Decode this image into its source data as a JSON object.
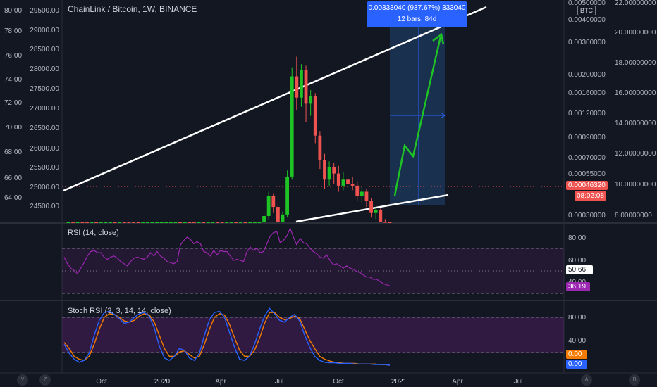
{
  "header": {
    "title": "ChainLink / Bitcoin, 1W, BINANCE"
  },
  "measure_box": {
    "line1": "0.00333040 (937.67%) 333040",
    "line2": "12 bars, 84d"
  },
  "price_badges": {
    "current": "0.00046320",
    "countdown": "08:02:08",
    "currency": "BTC"
  },
  "rsi_panel": {
    "label": "RSI (14, close)",
    "value_white": "50.66",
    "value_purple": "36.19"
  },
  "stoch_panel": {
    "label": "Stoch RSI (3, 3, 14, 14, close)",
    "value_orange": "0.00",
    "value_blue": "0.00"
  },
  "corner_buttons": {
    "bottom_left_1": "Y",
    "bottom_left_2": "Z",
    "bottom_right_1": "A",
    "bottom_right_2": "B"
  },
  "colors": {
    "up": "#26a69a",
    "green": "#1ec424",
    "down": "#ef5350",
    "purple": "#9c27b0",
    "blue": "#2962ff",
    "orange": "#f57c00",
    "bg": "#131722"
  },
  "chart_data": {
    "type": "candlestick",
    "left_axis_outer_ticks": [
      "80.00",
      "78.00",
      "76.00",
      "74.00",
      "72.00",
      "70.00",
      "68.00",
      "66.00",
      "64.00"
    ],
    "left_axis_inner_ticks": [
      "29500.00",
      "29000.00",
      "28500.00",
      "28000.00",
      "27500.00",
      "27000.00",
      "26500.00",
      "26000.00",
      "25500.00",
      "25000.00",
      "24500.00"
    ],
    "right_axis_inner_ticks": [
      "0.00500000",
      "0.00400000",
      "0.00300000",
      "0.00200000",
      "0.00160000",
      "0.00120000",
      "0.00090000",
      "0.00070000",
      "0.00055000",
      "0.00030000"
    ],
    "right_axis_outer_ticks": [
      "22.00000000",
      "20.00000000",
      "18.00000000",
      "16.00000000",
      "14.00000000",
      "12.00000000",
      "10.00000000",
      "8.00000000"
    ],
    "x_ticks": [
      "Oct",
      "2020",
      "Apr",
      "Jul",
      "Oct",
      "2021",
      "Apr",
      "Jul"
    ],
    "rsi_ticks": [
      "80.00",
      "60.00",
      "40.00"
    ],
    "stoch_ticks": [
      "80.00",
      "40.00"
    ],
    "candles": [
      {
        "o": 2.6,
        "c": 2.9,
        "h": 3.2,
        "l": 2.4
      },
      {
        "o": 2.9,
        "c": 2.7,
        "h": 3.0,
        "l": 2.5
      },
      {
        "o": 2.7,
        "c": 3.1,
        "h": 3.4,
        "l": 2.6
      },
      {
        "o": 3.1,
        "c": 2.8,
        "h": 3.5,
        "l": 2.7
      },
      {
        "o": 2.8,
        "c": 2.5,
        "h": 2.9,
        "l": 2.3
      },
      {
        "o": 2.5,
        "c": 2.7,
        "h": 2.9,
        "l": 2.4
      },
      {
        "o": 2.7,
        "c": 2.6,
        "h": 2.8,
        "l": 2.5
      },
      {
        "o": 2.6,
        "c": 2.8,
        "h": 2.9,
        "l": 2.5
      },
      {
        "o": 2.8,
        "c": 3.0,
        "h": 3.2,
        "l": 2.7
      },
      {
        "o": 3.0,
        "c": 3.3,
        "h": 3.5,
        "l": 2.9
      },
      {
        "o": 3.3,
        "c": 3.1,
        "h": 3.4,
        "l": 2.9
      },
      {
        "o": 3.1,
        "c": 3.2,
        "h": 3.3,
        "l": 3.0
      },
      {
        "o": 3.2,
        "c": 3.1,
        "h": 3.3,
        "l": 3.0
      },
      {
        "o": 3.1,
        "c": 2.8,
        "h": 3.2,
        "l": 2.7
      },
      {
        "o": 2.8,
        "c": 2.7,
        "h": 2.9,
        "l": 2.6
      },
      {
        "o": 2.7,
        "c": 2.6,
        "h": 2.8,
        "l": 2.5
      },
      {
        "o": 2.6,
        "c": 2.7,
        "h": 2.8,
        "l": 2.5
      },
      {
        "o": 2.7,
        "c": 2.8,
        "h": 2.9,
        "l": 2.6
      },
      {
        "o": 2.8,
        "c": 3.0,
        "h": 3.1,
        "l": 2.7
      },
      {
        "o": 3.0,
        "c": 3.3,
        "h": 3.4,
        "l": 2.9
      },
      {
        "o": 3.3,
        "c": 3.6,
        "h": 3.8,
        "l": 3.2
      },
      {
        "o": 3.6,
        "c": 4.4,
        "h": 4.6,
        "l": 3.5
      },
      {
        "o": 4.4,
        "c": 5.3,
        "h": 5.5,
        "l": 4.3
      },
      {
        "o": 5.3,
        "c": 5.8,
        "h": 6.2,
        "l": 5.1
      },
      {
        "o": 5.8,
        "c": 5.3,
        "h": 6.0,
        "l": 5.1
      },
      {
        "o": 5.3,
        "c": 5.9,
        "h": 6.6,
        "l": 5.2
      },
      {
        "o": 5.9,
        "c": 5.1,
        "h": 6.1,
        "l": 4.7
      },
      {
        "o": 5.1,
        "c": 4.7,
        "h": 5.3,
        "l": 4.5
      },
      {
        "o": 4.7,
        "c": 5.1,
        "h": 5.3,
        "l": 4.6
      },
      {
        "o": 5.1,
        "c": 4.8,
        "h": 5.2,
        "l": 4.6
      },
      {
        "o": 4.8,
        "c": 5.5,
        "h": 5.8,
        "l": 4.7
      },
      {
        "o": 5.5,
        "c": 5.7,
        "h": 5.8,
        "l": 5.3
      },
      {
        "o": 5.7,
        "c": 5.2,
        "h": 5.8,
        "l": 5.0
      },
      {
        "o": 5.2,
        "c": 4.8,
        "h": 5.3,
        "l": 4.6
      },
      {
        "o": 4.8,
        "c": 4.9,
        "h": 5.1,
        "l": 4.7
      },
      {
        "o": 4.9,
        "c": 5.1,
        "h": 5.2,
        "l": 4.8
      },
      {
        "o": 5.1,
        "c": 5.0,
        "h": 5.2,
        "l": 4.9
      },
      {
        "o": 5.0,
        "c": 5.2,
        "h": 5.3,
        "l": 4.9
      },
      {
        "o": 5.2,
        "c": 4.9,
        "h": 5.3,
        "l": 4.8
      },
      {
        "o": 4.9,
        "c": 5.3,
        "h": 5.5,
        "l": 4.8
      },
      {
        "o": 5.3,
        "c": 5.8,
        "h": 6.0,
        "l": 5.2
      },
      {
        "o": 5.8,
        "c": 6.0,
        "h": 6.2,
        "l": 5.6
      },
      {
        "o": 6.0,
        "c": 8.0,
        "h": 8.3,
        "l": 5.9
      },
      {
        "o": 8.0,
        "c": 9.3,
        "h": 9.6,
        "l": 7.8
      },
      {
        "o": 9.3,
        "c": 8.6,
        "h": 9.5,
        "l": 8.2
      },
      {
        "o": 8.6,
        "c": 7.6,
        "h": 8.9,
        "l": 7.2
      },
      {
        "o": 7.6,
        "c": 8.1,
        "h": 8.3,
        "l": 7.4
      },
      {
        "o": 8.1,
        "c": 10.6,
        "h": 11.0,
        "l": 7.9
      },
      {
        "o": 10.6,
        "c": 17.2,
        "h": 17.8,
        "l": 10.4
      },
      {
        "o": 17.2,
        "c": 15.8,
        "h": 18.5,
        "l": 15.0
      },
      {
        "o": 15.8,
        "c": 17.6,
        "h": 18.0,
        "l": 15.2
      },
      {
        "o": 17.6,
        "c": 15.4,
        "h": 17.9,
        "l": 14.2
      },
      {
        "o": 15.4,
        "c": 15.9,
        "h": 16.3,
        "l": 14.6
      },
      {
        "o": 15.9,
        "c": 13.3,
        "h": 16.1,
        "l": 12.8
      },
      {
        "o": 13.3,
        "c": 11.7,
        "h": 13.6,
        "l": 11.1
      },
      {
        "o": 11.7,
        "c": 10.4,
        "h": 12.1,
        "l": 9.8
      },
      {
        "o": 10.4,
        "c": 11.2,
        "h": 11.6,
        "l": 10.0
      },
      {
        "o": 11.2,
        "c": 10.8,
        "h": 11.5,
        "l": 10.1
      },
      {
        "o": 10.8,
        "c": 10.0,
        "h": 11.3,
        "l": 9.6
      },
      {
        "o": 10.0,
        "c": 10.4,
        "h": 10.9,
        "l": 9.7
      },
      {
        "o": 10.4,
        "c": 10.1,
        "h": 10.7,
        "l": 9.8
      },
      {
        "o": 10.1,
        "c": 10.0,
        "h": 10.6,
        "l": 9.7
      },
      {
        "o": 10.0,
        "c": 9.3,
        "h": 10.3,
        "l": 9.0
      },
      {
        "o": 9.3,
        "c": 9.6,
        "h": 9.9,
        "l": 8.9
      },
      {
        "o": 9.6,
        "c": 9.0,
        "h": 9.8,
        "l": 8.6
      },
      {
        "o": 9.0,
        "c": 8.2,
        "h": 9.2,
        "l": 7.9
      },
      {
        "o": 8.2,
        "c": 8.4,
        "h": 8.6,
        "l": 7.8
      },
      {
        "o": 8.4,
        "c": 7.6,
        "h": 8.5,
        "l": 7.2
      },
      {
        "o": 7.6,
        "c": 6.3,
        "h": 7.8,
        "l": 5.9
      },
      {
        "o": 6.3,
        "c": 4.6,
        "h": 6.4,
        "l": 4.4
      }
    ],
    "rsi": [
      62,
      56,
      52,
      50,
      47,
      52,
      57,
      63,
      67,
      68,
      66,
      66,
      62,
      60,
      62,
      63,
      61,
      58,
      56,
      54,
      58,
      61,
      62,
      61,
      60,
      62,
      66,
      63,
      67,
      63,
      61,
      58,
      57,
      56,
      58,
      73,
      77,
      80,
      78,
      74,
      76,
      74,
      67,
      66,
      63,
      68,
      64,
      68,
      67,
      67,
      63,
      59,
      60,
      59,
      58,
      67,
      71,
      68,
      70,
      66,
      67,
      74,
      81,
      84,
      85,
      75,
      77,
      81,
      88,
      80,
      73,
      79,
      75,
      74,
      70,
      67,
      65,
      62,
      61,
      64,
      59,
      55,
      56,
      54,
      52,
      54,
      52,
      51,
      49,
      48,
      46,
      44,
      44,
      42,
      42,
      40,
      38,
      37,
      36
    ],
    "stoch_k": [
      35,
      20,
      10,
      5,
      8,
      20,
      50,
      75,
      88,
      90,
      85,
      78,
      70,
      72,
      80,
      86,
      88,
      82,
      62,
      32,
      12,
      8,
      15,
      28,
      25,
      12,
      8,
      20,
      50,
      76,
      88,
      90,
      80,
      55,
      30,
      10,
      8,
      15,
      35,
      60,
      82,
      95,
      86,
      75,
      72,
      80,
      85,
      74,
      50,
      30,
      15,
      8,
      5,
      4,
      4,
      3,
      3,
      3,
      2,
      2,
      2,
      2,
      1,
      1,
      1,
      0
    ],
    "stoch_d": [
      38,
      28,
      15,
      10,
      8,
      15,
      35,
      60,
      80,
      86,
      85,
      80,
      74,
      72,
      75,
      82,
      86,
      84,
      72,
      50,
      28,
      15,
      15,
      22,
      24,
      18,
      12,
      15,
      35,
      60,
      80,
      86,
      84,
      68,
      46,
      25,
      15,
      15,
      25,
      45,
      70,
      88,
      88,
      80,
      76,
      78,
      82,
      78,
      60,
      42,
      28,
      15,
      10,
      7,
      5,
      4,
      3,
      3,
      3,
      2,
      2,
      2,
      2,
      1,
      1,
      0
    ]
  }
}
